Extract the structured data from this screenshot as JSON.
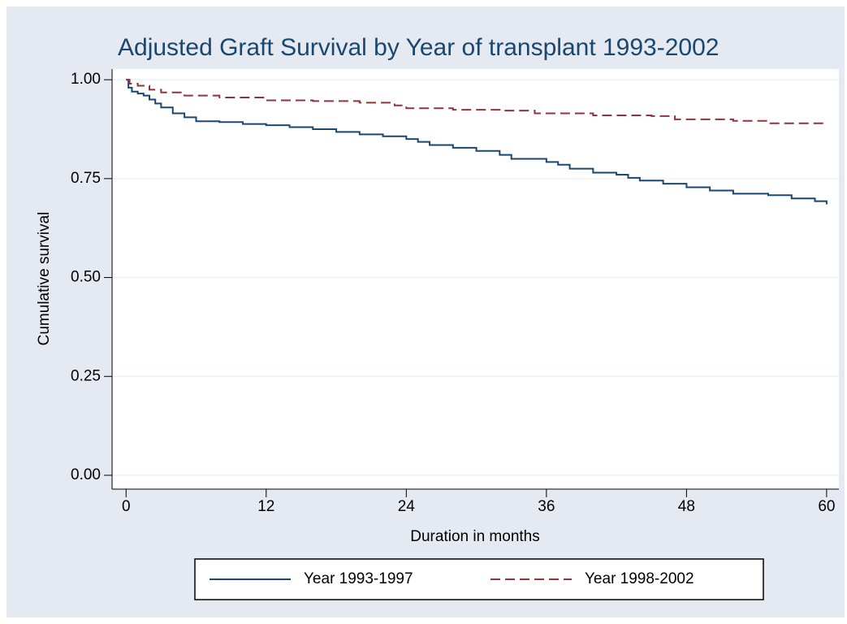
{
  "chart_data": {
    "type": "step",
    "title": "Adjusted Graft Survival by Year of transplant 1993-2002",
    "x_label": "Duration in months",
    "y_label": "Cumulative survival",
    "xlim": [
      -1.2,
      61.05
    ],
    "ylim": [
      -0.035,
      1.027
    ],
    "xticks": [
      0,
      12,
      24,
      36,
      48,
      60
    ],
    "yticks": [
      {
        "value": 0,
        "label": "0.00"
      },
      0.25,
      {
        "value": 0.5,
        "label": "0.50"
      },
      0.75,
      {
        "value": 1,
        "label": "1.00"
      }
    ],
    "grid": true,
    "legend": "bottom",
    "series": [
      {
        "name": "Year 1993-1997",
        "color": "#1a476f",
        "dash": "solid",
        "x": [
          0,
          0.2,
          0.5,
          1,
          1.5,
          2,
          2.5,
          3,
          4,
          5,
          6,
          8,
          10,
          12,
          14,
          16,
          18,
          20,
          22,
          24,
          25,
          26,
          28,
          30,
          32,
          33,
          36,
          37,
          38,
          40,
          42,
          43,
          44,
          46,
          48,
          50,
          52,
          55,
          57,
          59,
          60
        ],
        "values": [
          1.0,
          0.98,
          0.97,
          0.965,
          0.96,
          0.95,
          0.94,
          0.93,
          0.915,
          0.905,
          0.895,
          0.893,
          0.888,
          0.885,
          0.88,
          0.875,
          0.868,
          0.862,
          0.857,
          0.85,
          0.843,
          0.835,
          0.828,
          0.82,
          0.81,
          0.8,
          0.792,
          0.785,
          0.775,
          0.765,
          0.76,
          0.752,
          0.745,
          0.737,
          0.728,
          0.72,
          0.712,
          0.708,
          0.7,
          0.693,
          0.685
        ]
      },
      {
        "name": "Year 1998-2002",
        "color": "#90353b",
        "dash": "dashed",
        "x": [
          0,
          0.3,
          1,
          2,
          3,
          5,
          8,
          12,
          16,
          20,
          23,
          24,
          28,
          32,
          35,
          40,
          45,
          47,
          52,
          55,
          60
        ],
        "values": [
          1.0,
          0.99,
          0.985,
          0.975,
          0.968,
          0.96,
          0.955,
          0.948,
          0.946,
          0.942,
          0.935,
          0.928,
          0.924,
          0.922,
          0.915,
          0.91,
          0.908,
          0.9,
          0.896,
          0.89,
          0.888
        ]
      }
    ]
  }
}
